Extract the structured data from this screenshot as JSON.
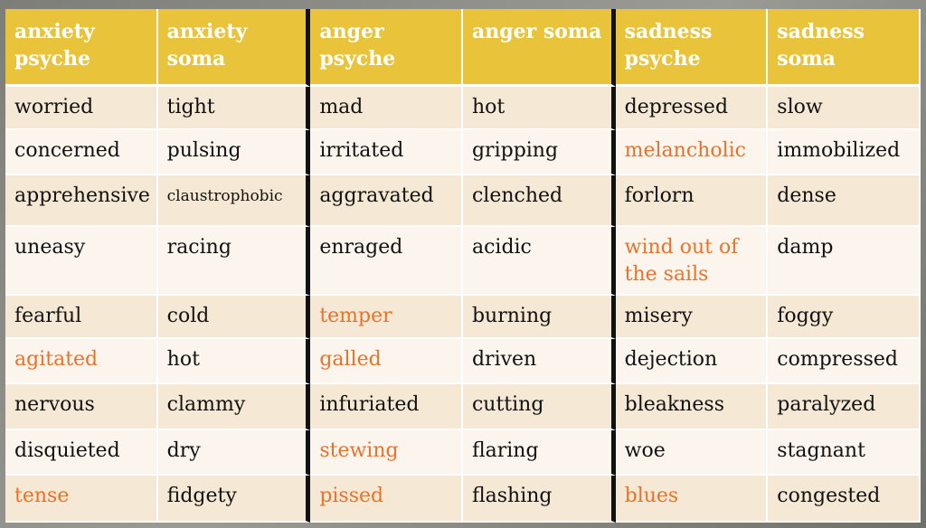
{
  "colors": {
    "header_bg": "#e9c43a",
    "header_text": "#ffffff",
    "row_odd": "#f5e8d4",
    "row_even": "#fbf5ee",
    "highlight_text": "#e8722a",
    "text": "#111111"
  },
  "headers": [
    "anxiety psyche",
    "anxiety soma",
    "anger psyche",
    "anger soma",
    "sadness psyche",
    "sadness soma"
  ],
  "rows": [
    [
      "worried",
      "tight",
      "mad",
      "hot",
      "depressed",
      "slow"
    ],
    [
      "concerned",
      "pulsing",
      "irritated",
      "gripping",
      "melancholic",
      "immobilized"
    ],
    [
      "apprehensive",
      "claustrophobic",
      "aggravated",
      "clenched",
      "forlorn",
      "dense"
    ],
    [
      "uneasy",
      "racing",
      "enraged",
      "acidic",
      "wind out of the sails",
      "damp"
    ],
    [
      "fearful",
      "cold",
      "temper",
      "burning",
      "misery",
      "foggy"
    ],
    [
      "agitated",
      "hot",
      "galled",
      "driven",
      "dejection",
      "compressed"
    ],
    [
      "nervous",
      "clammy",
      "infuriated",
      "cutting",
      "bleakness",
      "paralyzed"
    ],
    [
      "disquieted",
      "dry",
      "stewing",
      "flaring",
      "woe",
      "stagnant"
    ],
    [
      "tense",
      "fidgety",
      "pissed",
      "flashing",
      "blues",
      "congested"
    ]
  ],
  "highlighted": [
    "melancholic",
    "wind out of the sails",
    "temper",
    "agitated",
    "galled",
    "stewing",
    "tense",
    "pissed",
    "blues"
  ]
}
